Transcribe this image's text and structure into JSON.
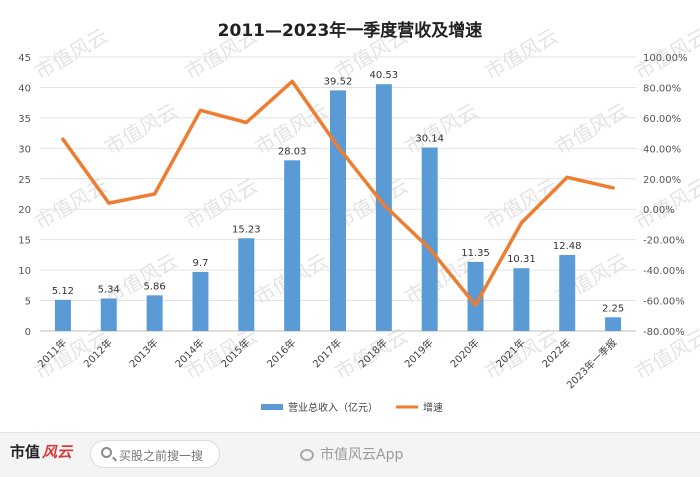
{
  "chart_data": {
    "type": "bar+line",
    "title": "2011—2023年一季度营收及增速",
    "categories": [
      "2011年",
      "2012年",
      "2013年",
      "2014年",
      "2015年",
      "2016年",
      "2017年",
      "2018年",
      "2019年",
      "2020年",
      "2021年",
      "2022年",
      "2023年一季报"
    ],
    "series": [
      {
        "name": "营业总收入（亿元）",
        "type": "bar",
        "axis": "left",
        "color": "#5b9bd5",
        "values": [
          5.12,
          5.34,
          5.86,
          9.7,
          15.23,
          28.03,
          39.52,
          40.53,
          30.14,
          11.35,
          10.31,
          12.48,
          2.25
        ],
        "labels": [
          "5.12",
          "5.34",
          "5.86",
          "9.7",
          "15.23",
          "28.03",
          "39.52",
          "40.53",
          "30.14",
          "11.35",
          "10.31",
          "12.48",
          "2.25"
        ]
      },
      {
        "name": "增速",
        "type": "line",
        "axis": "right",
        "color": "#ed7d31",
        "values": [
          46,
          4,
          10,
          65,
          57,
          84,
          41,
          3,
          -26,
          -63,
          -9,
          21,
          14
        ]
      }
    ],
    "y_left": {
      "min": 0,
      "max": 45,
      "ticks": [
        "0",
        "5",
        "10",
        "15",
        "20",
        "25",
        "30",
        "35",
        "40",
        "45"
      ]
    },
    "y_right": {
      "min": -80,
      "max": 100,
      "ticks": [
        "-80.00%",
        "-60.00%",
        "-40.00%",
        "-20.00%",
        "0.00%",
        "20.00%",
        "40.00%",
        "60.00%",
        "80.00%",
        "100.00%"
      ]
    },
    "grid": true,
    "legend_position": "bottom"
  },
  "watermark_text": "市值风云",
  "footer": {
    "brand": "市值",
    "brand_mark": "风云",
    "search_placeholder": "买股之前搜一搜",
    "watermark": "市值风云App"
  }
}
